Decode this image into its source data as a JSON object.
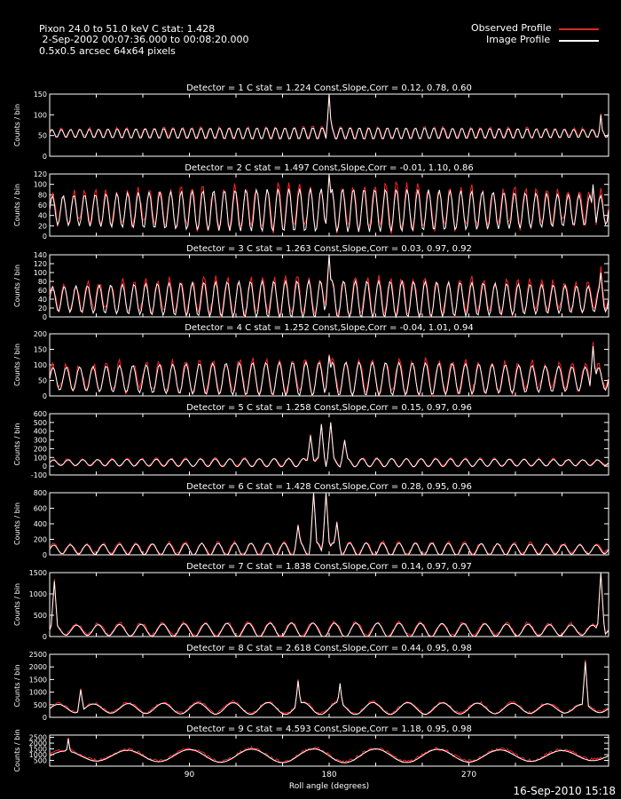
{
  "header": {
    "line1": "Pixon 24.0 to 51.0 keV C stat: 1.428",
    "line2": " 2-Sep-2002 00:07:36.000 to 00:08:20.000",
    "line3": "0.5x0.5 arcsec 64x64 pixels"
  },
  "legend": {
    "observed": "Observed Profile",
    "image": "Image Profile",
    "observed_color": "#ff2020",
    "image_color": "#ffffff"
  },
  "footer": {
    "date": "16-Sep-2010 15:18"
  },
  "chart_data": {
    "type": "line",
    "xlabel": "Roll angle (degrees)",
    "x_ticks": [
      90,
      180,
      270
    ],
    "xlim": [
      0,
      360
    ],
    "ylabel": "Counts / bin",
    "series_names": [
      "Observed Profile",
      "Image Profile"
    ],
    "panels": [
      {
        "title": "Detector = 1  C stat = 1.224  Const,Slope,Corr = 0.12, 0.78, 0.60",
        "ylim": [
          0,
          150
        ],
        "yticks": [
          0,
          50,
          100,
          150
        ],
        "base": 55,
        "amp": 12,
        "freq": 60,
        "spikes": [
          [
            180,
            150
          ],
          [
            355,
            100
          ]
        ]
      },
      {
        "title": "Detector = 2  C stat = 1.497  Const,Slope,Corr = -0.01, 1.10, 0.86",
        "ylim": [
          0,
          120
        ],
        "yticks": [
          0,
          20,
          40,
          60,
          80,
          100,
          120
        ],
        "base": 50,
        "amp": 35,
        "freq": 52,
        "spikes": [
          [
            180,
            120
          ],
          [
            350,
            100
          ]
        ]
      },
      {
        "title": "Detector = 3  C stat = 1.263  Const,Slope,Corr = 0.03, 0.97, 0.92",
        "ylim": [
          0,
          140
        ],
        "yticks": [
          0,
          20,
          40,
          60,
          80,
          100,
          120,
          140
        ],
        "base": 40,
        "amp": 35,
        "freq": 48,
        "spikes": [
          [
            180,
            140
          ],
          [
            355,
            100
          ]
        ]
      },
      {
        "title": "Detector = 4  C stat = 1.252  Const,Slope,Corr = -0.04, 1.01, 0.94",
        "ylim": [
          0,
          200
        ],
        "yticks": [
          0,
          50,
          100,
          150,
          200
        ],
        "base": 55,
        "amp": 45,
        "freq": 42,
        "spikes": [
          [
            180,
            130
          ],
          [
            350,
            160
          ]
        ]
      },
      {
        "title": "Detector = 5  C stat = 1.258  Const,Slope,Corr = 0.15, 0.97, 0.96",
        "ylim": [
          -100,
          600
        ],
        "yticks": [
          -100,
          0,
          100,
          200,
          300,
          400,
          500,
          600
        ],
        "base": 40,
        "amp": 40,
        "freq": 38,
        "spikes": [
          [
            168,
            350
          ],
          [
            175,
            480
          ],
          [
            181,
            500
          ],
          [
            190,
            300
          ]
        ]
      },
      {
        "title": "Detector = 6  C stat = 1.428  Const,Slope,Corr = 0.28, 0.95, 0.96",
        "ylim": [
          0,
          800
        ],
        "yticks": [
          0,
          200,
          400,
          600,
          800
        ],
        "base": 70,
        "amp": 70,
        "freq": 34,
        "spikes": [
          [
            160,
            380
          ],
          [
            170,
            800
          ],
          [
            178,
            810
          ],
          [
            185,
            420
          ]
        ]
      },
      {
        "title": "Detector = 7  C stat = 1.838  Const,Slope,Corr = 0.14, 0.97, 0.97",
        "ylim": [
          0,
          1500
        ],
        "yticks": [
          0,
          500,
          1000,
          1500
        ],
        "base": 150,
        "amp": 140,
        "freq": 26,
        "spikes": [
          [
            3,
            1300
          ],
          [
            355,
            1500
          ]
        ]
      },
      {
        "title": "Detector = 8  C stat = 2.618  Const,Slope,Corr = 0.44, 0.95, 0.98",
        "ylim": [
          0,
          2500
        ],
        "yticks": [
          0,
          500,
          1000,
          1500,
          2000,
          2500
        ],
        "base": 350,
        "amp": 200,
        "freq": 16,
        "spikes": [
          [
            20,
            1100
          ],
          [
            160,
            1450
          ],
          [
            187,
            1350
          ],
          [
            345,
            2200
          ]
        ]
      },
      {
        "title": "Detector = 9  C stat = 4.593  Const,Slope,Corr = 1.18, 0.95, 0.98",
        "ylim": [
          0,
          2700
        ],
        "yticks": [
          500,
          1000,
          1500,
          2000,
          2500
        ],
        "base": 900,
        "amp": 500,
        "freq": 9,
        "spikes": [
          [
            12,
            2400
          ]
        ]
      }
    ]
  }
}
